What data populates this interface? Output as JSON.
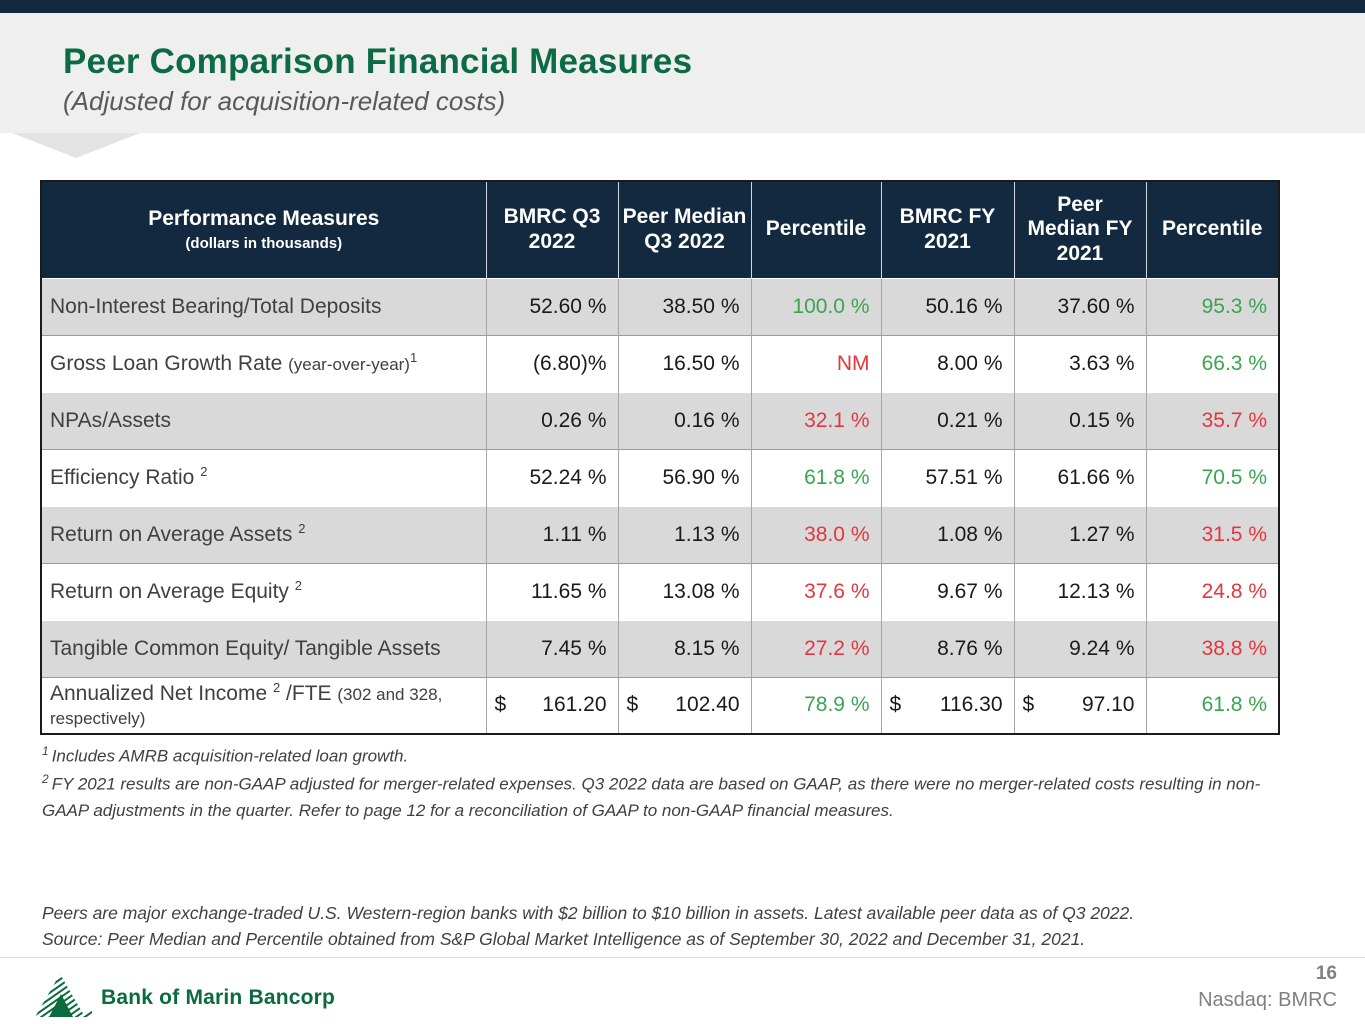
{
  "title": "Peer Comparison Financial Measures",
  "subtitle": "(Adjusted for acquisition-related costs)",
  "colors": {
    "navy": "#13293f",
    "title_green": "#0c6b45",
    "positive_green": "#3aa551",
    "negative_red": "#e6353d",
    "row_gray": "#d9d9d9"
  },
  "table": {
    "header": {
      "col0_title": "Performance Measures",
      "col0_sub": "(dollars in thousands)",
      "cols": [
        "BMRC Q3 2022",
        "Peer Median Q3 2022",
        "Percentile",
        "BMRC FY 2021",
        "Peer Median FY 2021",
        "Percentile"
      ]
    },
    "rows": [
      {
        "label_parts": [
          {
            "t": "text",
            "v": "Non-Interest Bearing/Total Deposits"
          }
        ],
        "cells": [
          {
            "v": "52.60 %"
          },
          {
            "v": "38.50 %"
          },
          {
            "v": "100.0 %",
            "c": "pos"
          },
          {
            "v": "50.16 %"
          },
          {
            "v": "37.60 %"
          },
          {
            "v": "95.3 %",
            "c": "pos"
          }
        ]
      },
      {
        "label_parts": [
          {
            "t": "text",
            "v": "Gross Loan Growth Rate "
          },
          {
            "t": "small",
            "v": "(year-over-year)"
          },
          {
            "t": "sup",
            "v": "1"
          }
        ],
        "cells": [
          {
            "v": "(6.80)%"
          },
          {
            "v": "16.50 %"
          },
          {
            "v": "NM",
            "c": "neg"
          },
          {
            "v": "8.00 %"
          },
          {
            "v": "3.63 %"
          },
          {
            "v": "66.3 %",
            "c": "pos"
          }
        ]
      },
      {
        "label_parts": [
          {
            "t": "text",
            "v": "NPAs/Assets"
          }
        ],
        "cells": [
          {
            "v": "0.26 %"
          },
          {
            "v": "0.16 %"
          },
          {
            "v": "32.1 %",
            "c": "neg"
          },
          {
            "v": "0.21 %"
          },
          {
            "v": "0.15 %"
          },
          {
            "v": "35.7 %",
            "c": "neg"
          }
        ]
      },
      {
        "label_parts": [
          {
            "t": "text",
            "v": "Efficiency Ratio "
          },
          {
            "t": "sup",
            "v": "2"
          }
        ],
        "cells": [
          {
            "v": "52.24 %"
          },
          {
            "v": "56.90 %"
          },
          {
            "v": "61.8 %",
            "c": "pos"
          },
          {
            "v": "57.51 %"
          },
          {
            "v": "61.66 %"
          },
          {
            "v": "70.5 %",
            "c": "pos"
          }
        ]
      },
      {
        "label_parts": [
          {
            "t": "text",
            "v": "Return on Average Assets "
          },
          {
            "t": "sup",
            "v": "2"
          }
        ],
        "cells": [
          {
            "v": "1.11 %"
          },
          {
            "v": "1.13 %"
          },
          {
            "v": "38.0 %",
            "c": "neg"
          },
          {
            "v": "1.08 %"
          },
          {
            "v": "1.27 %"
          },
          {
            "v": "31.5 %",
            "c": "neg"
          }
        ]
      },
      {
        "label_parts": [
          {
            "t": "text",
            "v": "Return on Average Equity "
          },
          {
            "t": "sup",
            "v": "2"
          }
        ],
        "cells": [
          {
            "v": "11.65 %"
          },
          {
            "v": "13.08 %"
          },
          {
            "v": "37.6 %",
            "c": "neg"
          },
          {
            "v": "9.67 %"
          },
          {
            "v": "12.13 %"
          },
          {
            "v": "24.8 %",
            "c": "neg"
          }
        ]
      },
      {
        "label_parts": [
          {
            "t": "text",
            "v": "Tangible Common Equity/ Tangible Assets"
          }
        ],
        "cells": [
          {
            "v": "7.45 %"
          },
          {
            "v": "8.15 %"
          },
          {
            "v": "27.2 %",
            "c": "neg"
          },
          {
            "v": "8.76 %"
          },
          {
            "v": "9.24 %"
          },
          {
            "v": "38.8 %",
            "c": "neg"
          }
        ]
      },
      {
        "label_parts": [
          {
            "t": "text",
            "v": "Annualized Net Income "
          },
          {
            "t": "sup",
            "v": "2"
          },
          {
            "t": "text",
            "v": " /FTE "
          },
          {
            "t": "small",
            "v": "(302 and 328, respectively)"
          }
        ],
        "cells": [
          {
            "d": "$",
            "v": "161.20"
          },
          {
            "d": "$",
            "v": "102.40"
          },
          {
            "v": "78.9 %",
            "c": "pos"
          },
          {
            "d": "$",
            "v": "116.30"
          },
          {
            "d": "$",
            "v": "97.10"
          },
          {
            "v": "61.8 %",
            "c": "pos"
          }
        ]
      }
    ]
  },
  "footnotes": [
    {
      "sup": "1",
      "text": "Includes AMRB acquisition-related loan growth."
    },
    {
      "sup": "2",
      "text": "FY 2021 results are non-GAAP adjusted for merger-related expenses. Q3 2022 data are based on GAAP, as there were no merger-related costs resulting in non-GAAP adjustments in the quarter.  Refer to page 12 for a reconciliation of GAAP to non-GAAP financial measures."
    }
  ],
  "peer_note": {
    "line1": "Peers are major exchange-traded U.S. Western-region banks with $2 billion to $10 billion in assets. Latest available peer data as of Q3 2022.",
    "line2": "Source: Peer Median and Percentile obtained from S&P Global Market Intelligence as of September 30, 2022 and December 31, 2021."
  },
  "footer": {
    "logo_text": "Bank of Marin Bancorp",
    "page_number": "16",
    "ticker": "Nasdaq: BMRC"
  }
}
